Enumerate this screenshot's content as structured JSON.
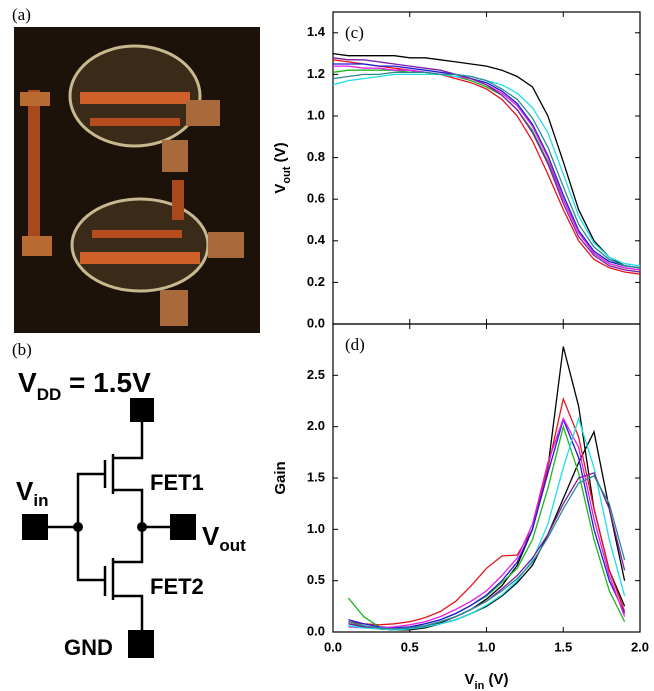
{
  "panels": {
    "a": "(a)",
    "b": "(b)"
  },
  "circuit": {
    "vdd": [
      "V",
      "DD",
      " = 1.5V"
    ],
    "fet1": "FET1",
    "fet2": "FET2",
    "vin": [
      "V",
      "in"
    ],
    "vout": [
      "V",
      "out"
    ],
    "gnd": "GND"
  },
  "chart_data": [
    {
      "type": "line",
      "panel_label": "(c)",
      "ylabel": [
        "V",
        "out",
        " (V)"
      ],
      "xlim": [
        0,
        2
      ],
      "ylim": [
        0,
        1.5
      ],
      "xticks": [
        0,
        0.5,
        1,
        1.5,
        2
      ],
      "yticks": [
        {
          "value": 0,
          "label": "0.0"
        },
        0.2,
        0.4,
        0.6,
        0.8,
        {
          "value": 1,
          "label": "1.0"
        },
        1.2,
        1.4
      ],
      "x": [
        0.0,
        0.1,
        0.2,
        0.3,
        0.4,
        0.5,
        0.6,
        0.7,
        0.8,
        0.9,
        1.0,
        1.1,
        1.2,
        1.3,
        1.4,
        1.5,
        1.6,
        1.7,
        1.8,
        1.9,
        2.0
      ],
      "series": [
        {
          "color": "#000000",
          "values": [
            1.3,
            1.29,
            1.29,
            1.29,
            1.29,
            1.28,
            1.28,
            1.27,
            1.26,
            1.25,
            1.24,
            1.22,
            1.19,
            1.14,
            1.0,
            0.78,
            0.55,
            0.4,
            0.32,
            0.28,
            0.27
          ]
        },
        {
          "color": "#e8141c",
          "values": [
            1.27,
            1.26,
            1.25,
            1.24,
            1.23,
            1.22,
            1.21,
            1.2,
            1.18,
            1.16,
            1.13,
            1.08,
            1.0,
            0.88,
            0.72,
            0.55,
            0.4,
            0.31,
            0.27,
            0.25,
            0.24
          ]
        },
        {
          "color": "#1fb51f",
          "values": [
            1.21,
            1.22,
            1.22,
            1.22,
            1.22,
            1.21,
            1.21,
            1.2,
            1.19,
            1.17,
            1.14,
            1.1,
            1.03,
            0.93,
            0.78,
            0.6,
            0.44,
            0.34,
            0.29,
            0.27,
            0.26
          ]
        },
        {
          "color": "#1c1cdc",
          "values": [
            1.25,
            1.25,
            1.25,
            1.24,
            1.24,
            1.23,
            1.22,
            1.21,
            1.2,
            1.18,
            1.16,
            1.12,
            1.06,
            0.96,
            0.81,
            0.62,
            0.45,
            0.35,
            0.3,
            0.28,
            0.27
          ]
        },
        {
          "color": "#e81ce8",
          "values": [
            1.24,
            1.24,
            1.23,
            1.23,
            1.22,
            1.22,
            1.21,
            1.2,
            1.19,
            1.18,
            1.15,
            1.11,
            1.05,
            0.95,
            0.8,
            0.6,
            0.44,
            0.34,
            0.29,
            0.27,
            0.26
          ]
        },
        {
          "color": "#1ce0e8",
          "values": [
            1.15,
            1.17,
            1.18,
            1.19,
            1.2,
            1.2,
            1.2,
            1.2,
            1.19,
            1.19,
            1.17,
            1.15,
            1.11,
            1.04,
            0.92,
            0.72,
            0.52,
            0.39,
            0.32,
            0.29,
            0.28
          ]
        },
        {
          "color": "#7a1ca8",
          "values": [
            1.28,
            1.27,
            1.27,
            1.26,
            1.25,
            1.24,
            1.23,
            1.22,
            1.2,
            1.18,
            1.15,
            1.1,
            1.03,
            0.92,
            0.77,
            0.58,
            0.42,
            0.33,
            0.28,
            0.26,
            0.25
          ]
        },
        {
          "color": "#2c8a8a",
          "values": [
            1.18,
            1.19,
            1.2,
            1.2,
            1.21,
            1.21,
            1.21,
            1.2,
            1.2,
            1.19,
            1.17,
            1.13,
            1.08,
            0.99,
            0.85,
            0.66,
            0.48,
            0.37,
            0.31,
            0.28,
            0.27
          ]
        }
      ]
    },
    {
      "type": "line",
      "panel_label": "(d)",
      "ylabel": "Gain",
      "xlabel": [
        "V",
        "in",
        " (V)"
      ],
      "xlim": [
        0,
        2
      ],
      "ylim": [
        0,
        3
      ],
      "xticks": [
        {
          "value": 0,
          "label": "0.0"
        },
        0.5,
        {
          "value": 1,
          "label": "1.0"
        },
        1.5,
        {
          "value": 2,
          "label": "2.0"
        }
      ],
      "yticks": [
        {
          "value": 0,
          "label": "0.0"
        },
        0.5,
        {
          "value": 1,
          "label": "1.0"
        },
        1.5,
        {
          "value": 2,
          "label": "2.0"
        },
        2.5
      ],
      "x": [
        0.1,
        0.2,
        0.3,
        0.4,
        0.5,
        0.6,
        0.7,
        0.8,
        0.9,
        1.0,
        1.1,
        1.2,
        1.3,
        1.4,
        1.5,
        1.6,
        1.7,
        1.8,
        1.9
      ],
      "series": [
        {
          "color": "#000000",
          "values": [
            0.1,
            0.06,
            0.03,
            0.02,
            0.03,
            0.05,
            0.09,
            0.15,
            0.22,
            0.32,
            0.45,
            0.65,
            1.0,
            1.6,
            2.78,
            2.2,
            1.2,
            0.6,
            0.25
          ]
        },
        {
          "color": "#000000",
          "values": [
            0.08,
            0.05,
            0.03,
            0.02,
            0.02,
            0.04,
            0.08,
            0.12,
            0.18,
            0.25,
            0.35,
            0.48,
            0.65,
            0.95,
            1.3,
            1.65,
            1.95,
            1.2,
            0.5
          ]
        },
        {
          "color": "#e8141c",
          "values": [
            0.1,
            0.08,
            0.07,
            0.08,
            0.1,
            0.14,
            0.2,
            0.3,
            0.45,
            0.62,
            0.74,
            0.75,
            1.0,
            1.6,
            2.27,
            1.9,
            1.2,
            0.6,
            0.2
          ]
        },
        {
          "color": "#1fb51f",
          "values": [
            0.33,
            0.15,
            0.05,
            0.02,
            0.04,
            0.08,
            0.12,
            0.18,
            0.26,
            0.35,
            0.48,
            0.62,
            0.9,
            1.4,
            2.0,
            1.55,
            0.9,
            0.4,
            0.1
          ]
        },
        {
          "color": "#1c1cdc",
          "values": [
            0.12,
            0.08,
            0.05,
            0.04,
            0.05,
            0.08,
            0.12,
            0.18,
            0.26,
            0.36,
            0.5,
            0.68,
            1.0,
            1.55,
            2.07,
            1.7,
            1.0,
            0.5,
            0.18
          ]
        },
        {
          "color": "#e81ce8",
          "values": [
            0.05,
            0.04,
            0.04,
            0.05,
            0.07,
            0.1,
            0.15,
            0.22,
            0.3,
            0.4,
            0.55,
            0.72,
            1.05,
            1.65,
            2.08,
            1.8,
            1.1,
            0.55,
            0.15
          ]
        },
        {
          "color": "#1ce0e8",
          "values": [
            0.06,
            0.04,
            0.03,
            0.02,
            0.03,
            0.05,
            0.08,
            0.12,
            0.18,
            0.26,
            0.36,
            0.5,
            0.7,
            1.05,
            1.6,
            2.08,
            1.6,
            0.9,
            0.35
          ]
        },
        {
          "color": "#7a1ca8",
          "values": [
            0.08,
            0.05,
            0.04,
            0.03,
            0.04,
            0.06,
            0.1,
            0.15,
            0.22,
            0.3,
            0.42,
            0.55,
            0.72,
            0.95,
            1.25,
            1.5,
            1.55,
            1.2,
            0.6
          ]
        },
        {
          "color": "#2c8a8a",
          "values": [
            0.1,
            0.06,
            0.04,
            0.03,
            0.04,
            0.06,
            0.1,
            0.15,
            0.22,
            0.3,
            0.4,
            0.52,
            0.68,
            0.92,
            1.2,
            1.45,
            1.52,
            1.25,
            0.7
          ]
        }
      ]
    }
  ]
}
